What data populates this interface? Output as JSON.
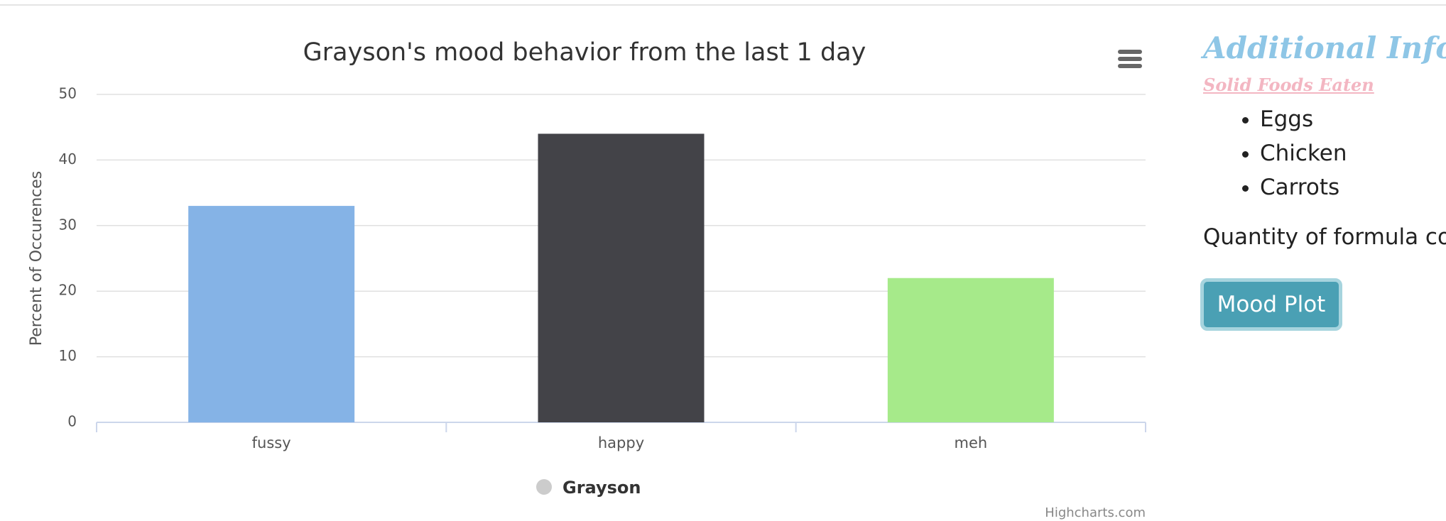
{
  "chart_data": {
    "type": "bar",
    "title": "Grayson's mood behavior from the last 1 day",
    "y_label": "Percent of Occurences",
    "categories": [
      "fussy",
      "happy",
      "meh"
    ],
    "series": [
      {
        "name": "Grayson",
        "color": "#cccccc",
        "values": [
          33,
          44,
          22
        ],
        "colors": [
          "#85b3e6",
          "#434348",
          "#a6ea8a"
        ]
      }
    ],
    "ylim": [
      0,
      50
    ],
    "yticks": [
      0,
      10,
      20,
      30,
      40,
      50
    ],
    "grid": true,
    "legend": "bottom",
    "credits": "Highcharts.com"
  },
  "sidebar": {
    "title": "Additional Info",
    "subtitle": "Solid Foods Eaten",
    "foods": [
      "Eggs",
      "Chicken",
      "Carrots"
    ],
    "quantity": "Quantity of formula cons",
    "button": "Mood Plot"
  }
}
